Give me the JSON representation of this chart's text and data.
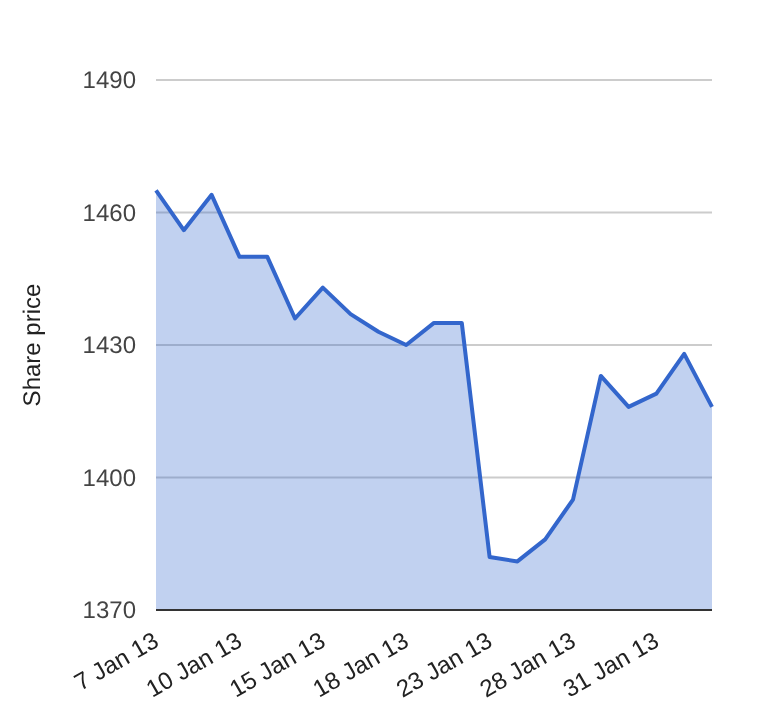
{
  "chart_data": {
    "type": "area",
    "ylabel": "Share price",
    "categories": [
      "7 Jan 13",
      null,
      null,
      "10 Jan 13",
      null,
      null,
      "15 Jan 13",
      null,
      null,
      "18 Jan 13",
      null,
      null,
      "23 Jan 13",
      null,
      null,
      "28 Jan 13",
      null,
      null,
      "31 Jan 13",
      null,
      null
    ],
    "series": [
      {
        "color": "#3366cc",
        "values": [
          1465,
          1456,
          1464,
          1450,
          1450,
          1436,
          1443,
          1437,
          1433,
          1430,
          1435,
          1435,
          1382,
          1381,
          1386,
          1395,
          1423,
          1416,
          1419,
          1428,
          1416
        ]
      }
    ],
    "ylim": [
      1370,
      1490
    ],
    "yticks": [
      1370,
      1400,
      1430,
      1460,
      1490
    ],
    "grid": "y"
  }
}
